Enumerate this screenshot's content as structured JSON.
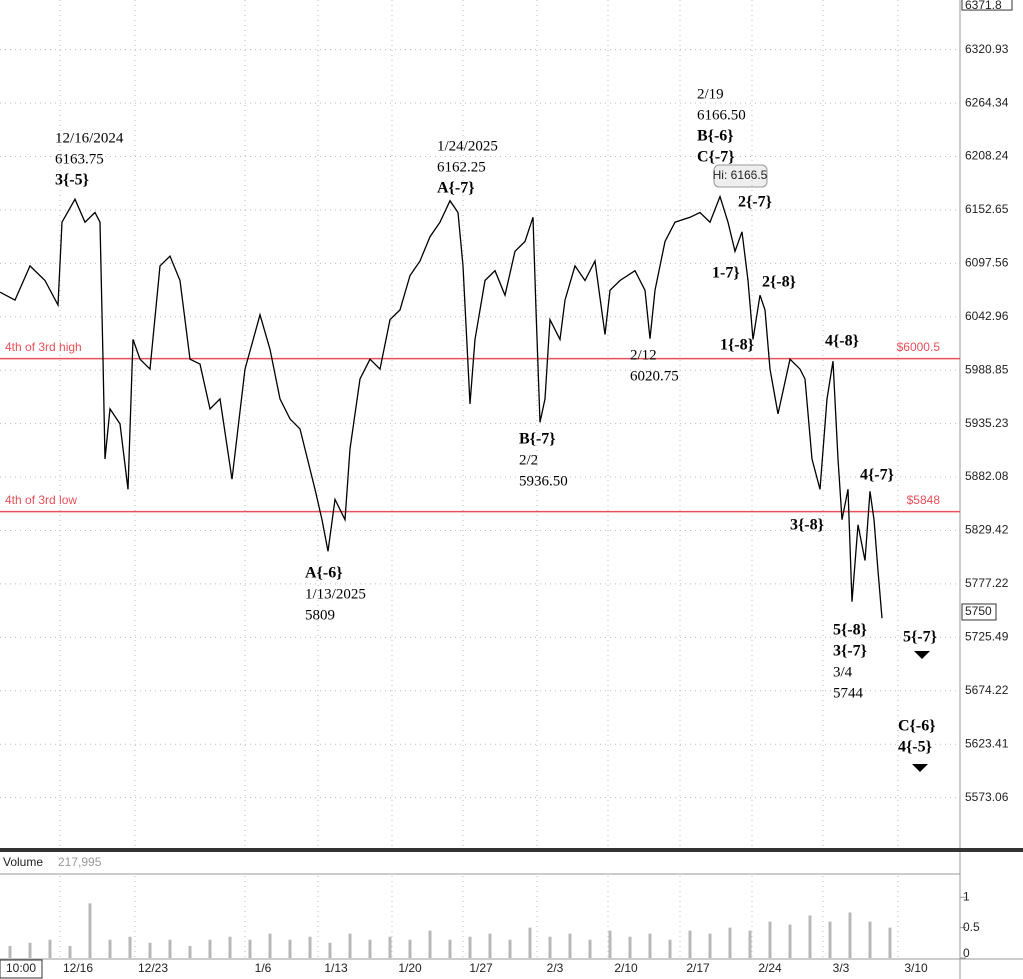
{
  "chart_data": {
    "type": "line",
    "log_scale": true,
    "grid": true,
    "cursor_time": "10:00",
    "xlim": [
      0,
      96
    ],
    "xticks": [
      {
        "value": 6,
        "label": "12/16"
      },
      {
        "value": 13.5,
        "label": "12/23"
      },
      {
        "value": 24.5,
        "label": "1/6"
      },
      {
        "value": 31.8,
        "label": "1/13"
      },
      {
        "value": 39.2,
        "label": "1/20"
      },
      {
        "value": 46.3,
        "label": "1/27"
      },
      {
        "value": 53.7,
        "label": "2/3"
      },
      {
        "value": 60.8,
        "label": "2/10"
      },
      {
        "value": 68,
        "label": "2/17"
      },
      {
        "value": 75.2,
        "label": "2/24"
      },
      {
        "value": 82.3,
        "label": "3/3"
      },
      {
        "value": 89.8,
        "label": "3/10"
      }
    ],
    "ylim": [
      5526,
      6374
    ],
    "yticks": [
      6371.8,
      6320.93,
      6264.34,
      6208.24,
      6152.65,
      6097.56,
      6042.96,
      5988.85,
      5935.23,
      5882.08,
      5829.42,
      5777.22,
      5725.49,
      5674.22,
      5623.41,
      5573.06
    ],
    "last_price": 5750,
    "series": [
      {
        "color": "#000000",
        "x": [
          0,
          1.5,
          3,
          4.5,
          5.8,
          6.2,
          7.5,
          8.5,
          9.5,
          10,
          10.3,
          10.5,
          11,
          12,
          12.8,
          13.3,
          14,
          15,
          16,
          17,
          18,
          19,
          20,
          21,
          22,
          23.2,
          24.5,
          26,
          27,
          28,
          29,
          30,
          31.5,
          32.2,
          32.8,
          33.5,
          34.5,
          35,
          36,
          37,
          38,
          39,
          40,
          41,
          42,
          43,
          44,
          45,
          45.8,
          46.3,
          47,
          47.5,
          48.5,
          49.5,
          50.5,
          51.5,
          52.5,
          53.3,
          53.6,
          54,
          54.5,
          55,
          56,
          56.5,
          57.5,
          58.5,
          59.5,
          60.5,
          61,
          62,
          63.5,
          64.5,
          65,
          65.5,
          66.5,
          67.5,
          69,
          70,
          71,
          72,
          72.8,
          73.5,
          74.2,
          74.8,
          75.3,
          76,
          76.5,
          77,
          77.8,
          79,
          80,
          80.5,
          81.2,
          82,
          82.7,
          83.3,
          83.8,
          84.2,
          84.8,
          85.2,
          85.8,
          86.5,
          87,
          87.4,
          87.8,
          88.2
        ],
        "values": [
          6068,
          6060,
          6095,
          6080,
          6055,
          6140,
          6163.75,
          6140,
          6150,
          6140,
          6000,
          5900,
          5950,
          5935,
          5870,
          6020,
          6000,
          5990,
          6095,
          6105,
          6080,
          6000,
          5995,
          5950,
          5960,
          5880,
          5990,
          6045,
          6010,
          5960,
          5940,
          5930,
          5870,
          5840,
          5809,
          5860,
          5840,
          5910,
          5980,
          6000,
          5990,
          6040,
          6050,
          6085,
          6100,
          6125,
          6140,
          6162.25,
          6150,
          6095,
          5955,
          6020,
          6080,
          6090,
          6065,
          6110,
          6120,
          6145,
          6050,
          5936.5,
          5960,
          6040,
          6020,
          6060,
          6095,
          6080,
          6100,
          6025,
          6070,
          6080,
          6090,
          6070,
          6020.75,
          6070,
          6120,
          6140,
          6145,
          6150,
          6140,
          6166.5,
          6140,
          6110,
          6130,
          6080,
          6020,
          6065,
          6050,
          5990,
          5945,
          6000,
          5990,
          5980,
          5900,
          5870,
          5960,
          5998,
          5900,
          5840,
          5870,
          5760,
          5835,
          5800,
          5868,
          5840,
          5790,
          5744
        ]
      }
    ],
    "hlines": [
      {
        "label": "4th of 3rd high",
        "value": 6000.5,
        "value_label": "$6000.5",
        "color": "#e8505b"
      },
      {
        "label": "4th of 3rd low",
        "value": 5848,
        "value_label": "$5848",
        "color": "#e8505b"
      }
    ],
    "tooltip": "Hi: 6166.5",
    "annotations": [
      [
        "12/16/2024",
        "6163.75",
        "3{-5}"
      ],
      [
        "1/24/2025",
        "6162.25",
        "A{-7}"
      ],
      [
        "2/19",
        "6166.50",
        "B{-6}",
        "C{-7}"
      ],
      [
        "2{-7}"
      ],
      [
        "1-7}"
      ],
      [
        "2{-8}"
      ],
      [
        "1{-8}"
      ],
      [
        "4{-8}"
      ],
      [
        "2/12",
        "6020.75"
      ],
      [
        "B{-7}",
        "2/2",
        "5936.50"
      ],
      [
        "A{-6}",
        "1/13/2025",
        "5809"
      ],
      [
        "4{-7}"
      ],
      [
        "3{-8}"
      ],
      [
        "5{-8}",
        "3{-7}",
        "3/4",
        "5744"
      ],
      [
        "5{-7}"
      ],
      [
        "C{-6}",
        "4{-5}"
      ]
    ],
    "volume": {
      "title": "Volume",
      "total_label": "217,995",
      "color": "#b8b8b8",
      "ylim": [
        0,
        1.35
      ],
      "yticks": [
        0,
        0.5,
        1
      ],
      "x": [
        1,
        3,
        5,
        7,
        9,
        11,
        13,
        15,
        17,
        19,
        21,
        23,
        25,
        27,
        29,
        31,
        33,
        35,
        37,
        39,
        41,
        43,
        45,
        47,
        49,
        51,
        53,
        55,
        57,
        59,
        61,
        63,
        65,
        67,
        69,
        71,
        73,
        75,
        77,
        79,
        81,
        83,
        85,
        87,
        89
      ],
      "values": [
        0.2,
        0.25,
        0.3,
        0.2,
        0.9,
        0.3,
        0.35,
        0.25,
        0.3,
        0.2,
        0.3,
        0.35,
        0.3,
        0.4,
        0.3,
        0.35,
        0.25,
        0.4,
        0.3,
        0.35,
        0.3,
        0.45,
        0.3,
        0.35,
        0.4,
        0.3,
        0.5,
        0.35,
        0.4,
        0.3,
        0.45,
        0.35,
        0.4,
        0.3,
        0.45,
        0.4,
        0.5,
        0.45,
        0.6,
        0.55,
        0.7,
        0.6,
        0.75,
        0.6,
        0.5
      ]
    }
  }
}
